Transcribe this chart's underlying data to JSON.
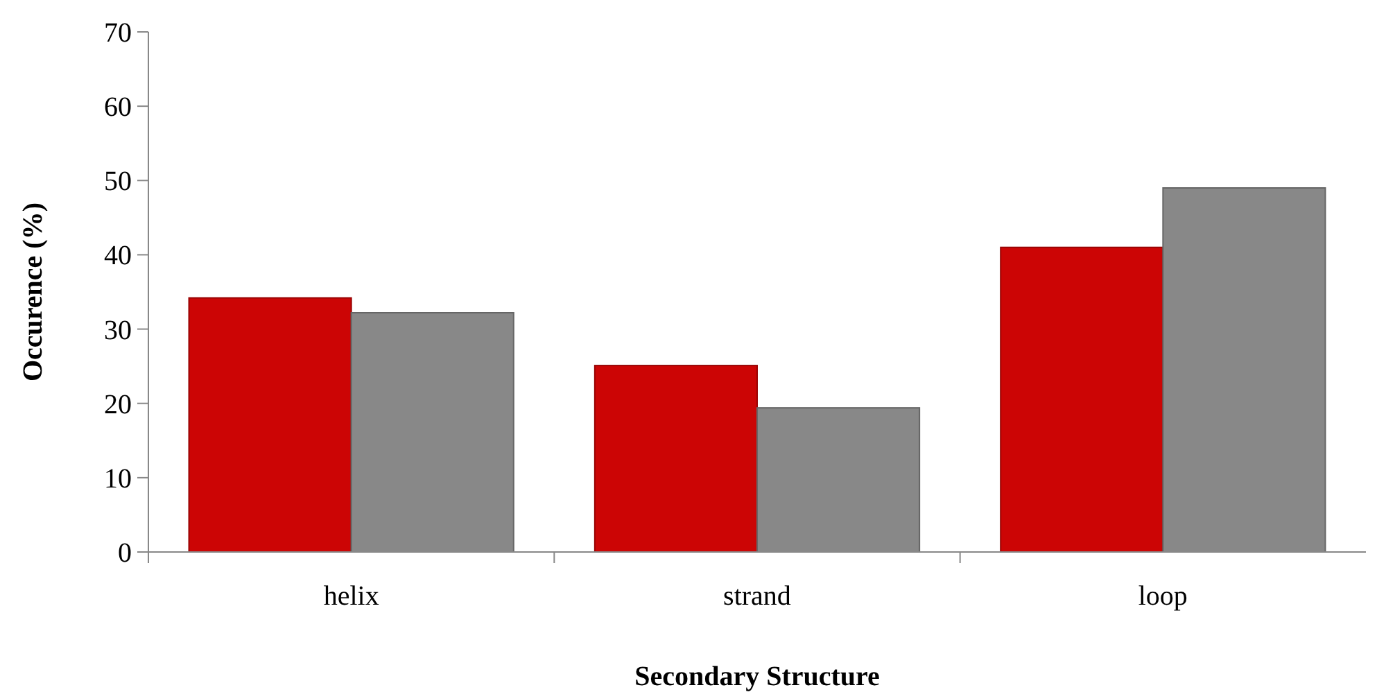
{
  "chart_data": {
    "type": "bar",
    "xlabel": "Secondary Structure",
    "ylabel": "Occurence (%)",
    "categories": [
      "helix",
      "strand",
      "loop"
    ],
    "series": [
      {
        "color": "#cc0505",
        "values": [
          34.2,
          25.1,
          41.0
        ]
      },
      {
        "color": "#888888",
        "values": [
          32.2,
          19.4,
          49.0
        ]
      }
    ],
    "ylim": [
      0,
      70
    ],
    "yticks": [
      0,
      10,
      20,
      30,
      40,
      50,
      60,
      70
    ],
    "grid": false
  }
}
